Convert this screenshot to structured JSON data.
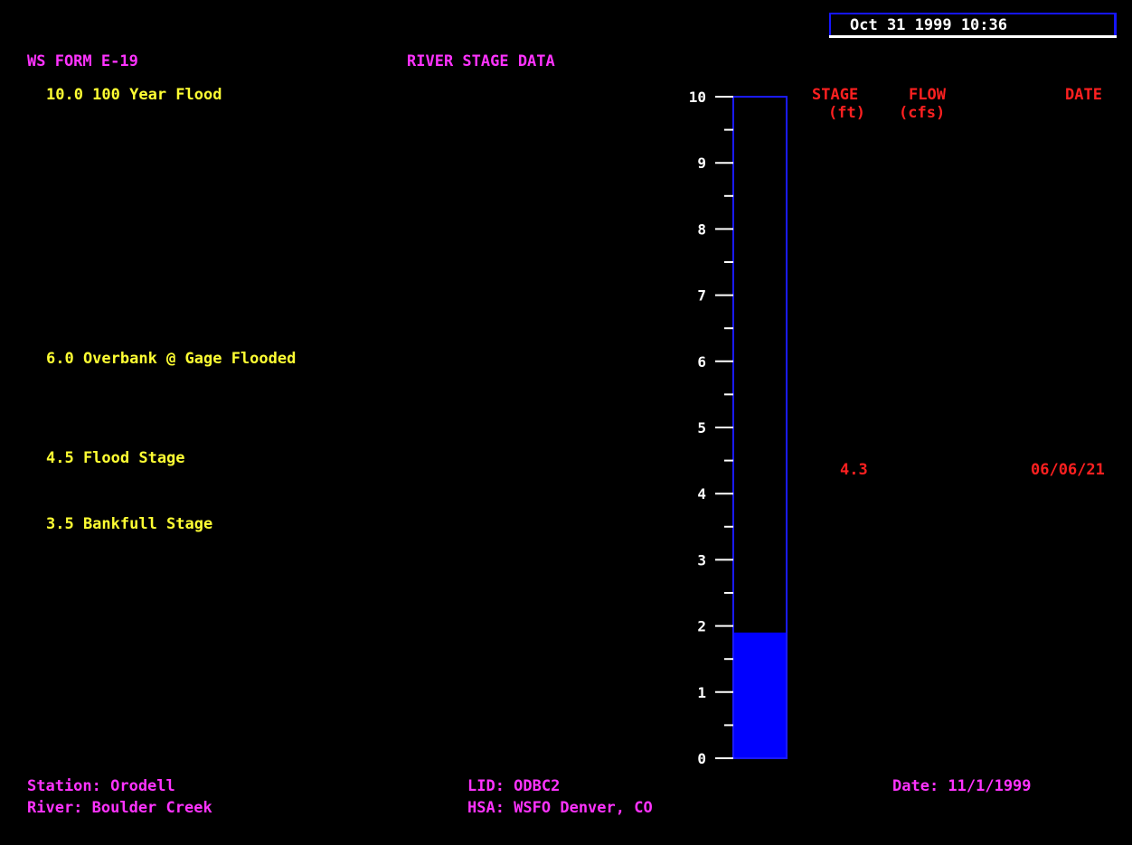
{
  "header": {
    "datetime": "Oct 31 1999 10:36",
    "form_id": "WS FORM E-19",
    "title": "RIVER STAGE DATA"
  },
  "stage_markers": [
    {
      "value": 10.0,
      "label": "10.0 100 Year Flood"
    },
    {
      "value": 6.0,
      "label": "6.0 Overbank @ Gage Flooded"
    },
    {
      "value": 4.5,
      "label": "4.5 Flood Stage"
    },
    {
      "value": 3.5,
      "label": "3.5 Bankfull Stage"
    }
  ],
  "table": {
    "col_stage": "STAGE",
    "col_stage_unit": "(ft)",
    "col_flow": "FLOW",
    "col_flow_unit": "(cfs)",
    "col_date": "DATE",
    "rows": [
      {
        "stage": "4.3",
        "flow": "",
        "date": "06/06/21"
      }
    ]
  },
  "footer": {
    "station": "Station: Orodell",
    "river": "River: Boulder Creek",
    "lid": "LID: ODBC2",
    "hsa": "HSA: WSFO Denver, CO",
    "date": "Date: 11/1/1999"
  },
  "chart_data": {
    "type": "bar",
    "categories": [
      ""
    ],
    "values": [
      1.9
    ],
    "ylim": [
      0,
      10
    ],
    "yticks": [
      "0",
      "1",
      "2",
      "3",
      "4",
      "5",
      "6",
      "7",
      "8",
      "9",
      "10"
    ],
    "bar_color": "#0000ff",
    "frame_color": "#1a1aff"
  },
  "colors": {
    "form_header": "#ff33ff",
    "stage_labels": "#ffff33",
    "table_text": "#ff2020",
    "background": "#000000"
  }
}
